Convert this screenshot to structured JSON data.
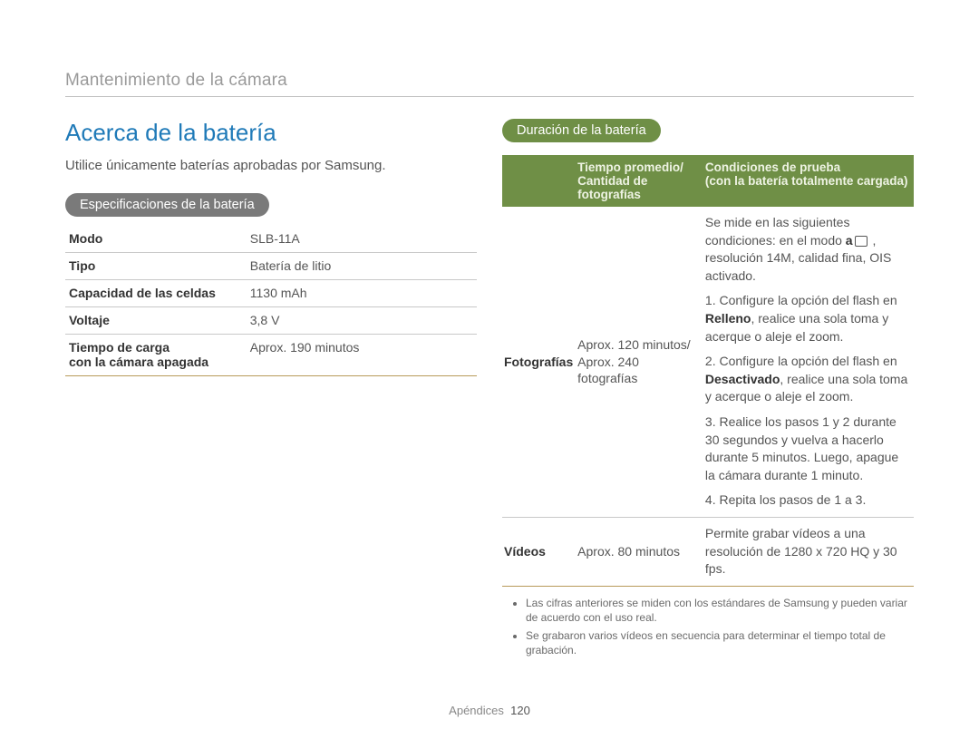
{
  "breadcrumb": "Mantenimiento de la cámara",
  "left": {
    "title": "Acerca de la batería",
    "intro": "Utilice únicamente baterías aprobadas por Samsung.",
    "spec_pill": "Especificaciones de la batería",
    "rows": [
      {
        "label": "Modo",
        "value": "SLB-11A"
      },
      {
        "label": "Tipo",
        "value": "Batería de litio"
      },
      {
        "label": "Capacidad de las celdas",
        "value": "1130 mAh"
      },
      {
        "label": "Voltaje",
        "value": "3,8 V"
      },
      {
        "label": "Tiempo de carga",
        "label2": "con la cámara apagada",
        "value": "Aprox. 190 minutos"
      }
    ]
  },
  "right": {
    "dur_pill": "Duración de la batería",
    "header": {
      "col2a": "Tiempo promedio/",
      "col2b": "Cantidad de fotografías",
      "col3a": "Condiciones de prueba",
      "col3b": "(con la batería totalmente cargada)"
    },
    "photos_row": {
      "label": "Fotografías",
      "time": "Aprox. 120 minutos/ Aprox. 240 fotografías",
      "cond_intro_a": "Se mide en las siguientes condiciones: en el modo ",
      "cond_intro_b": " , resolución 14M, calidad fina, OIS activado.",
      "step1a": "1. Configure la opción del flash en ",
      "step1_bold": "Relleno",
      "step1b": ", realice una sola toma y acerque o aleje el zoom.",
      "step2a": "2. Configure la opción del flash en ",
      "step2_bold": "Desactivado",
      "step2b": ", realice una sola toma y acerque o aleje el zoom.",
      "step3": "3. Realice los pasos 1 y 2 durante 30 segundos y vuelva a hacerlo durante 5 minutos. Luego, apague la cámara durante 1 minuto.",
      "step4": "4. Repita los pasos de 1 a 3."
    },
    "videos_row": {
      "label": "Vídeos",
      "time": "Aprox. 80 minutos",
      "cond": "Permite grabar vídeos a una resolución de 1280 x 720 HQ y 30 fps."
    },
    "notes": [
      "Las cifras anteriores se miden con los estándares de Samsung y pueden variar de acuerdo con el uso real.",
      "Se grabaron varios vídeos en secuencia para determinar el tiempo total de grabación."
    ]
  },
  "footer": {
    "section": "Apéndices",
    "page": "120"
  },
  "mode_letter": "a"
}
